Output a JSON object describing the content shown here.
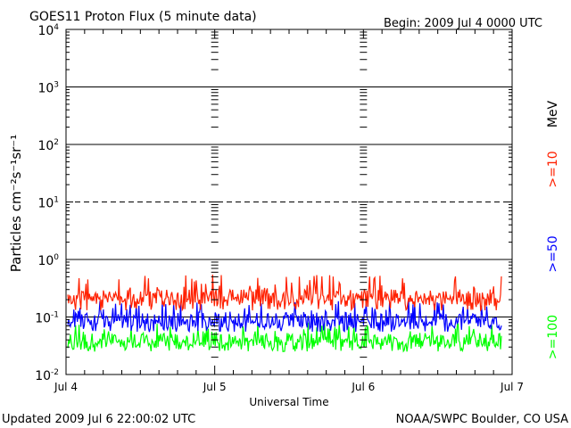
{
  "chart_data": {
    "type": "line",
    "title": "GOES11 Proton Flux (5 minute data)",
    "begin_label": "Begin: 2009 Jul 4 0000 UTC",
    "ylabel": "Particles cm⁻²s⁻¹sr⁻¹",
    "xlabel": "Universal Time",
    "y_scale": "log",
    "ylim": [
      0.01,
      10000
    ],
    "y_ticks": [
      {
        "base": "10",
        "exp": "4"
      },
      {
        "base": "10",
        "exp": "3"
      },
      {
        "base": "10",
        "exp": "2"
      },
      {
        "base": "10",
        "exp": "1"
      },
      {
        "base": "10",
        "exp": "0"
      },
      {
        "base": "10",
        "exp": "-1"
      },
      {
        "base": "10",
        "exp": "-2"
      }
    ],
    "x_range": [
      "2009-07-04T00:00Z",
      "2009-07-07T00:00Z"
    ],
    "x_ticks": [
      "Jul 4",
      "Jul 5",
      "Jul 6",
      "Jul 7"
    ],
    "threshold_lines": [
      {
        "value": 1000,
        "style": "solid"
      },
      {
        "value": 100,
        "style": "solid"
      },
      {
        "value": 10,
        "style": "dashed"
      },
      {
        "value": 1,
        "style": "solid"
      },
      {
        "value": 0.1,
        "style": "solid"
      }
    ],
    "series": [
      {
        "name": ">=10",
        "color": "#ff2000",
        "typical_value": 0.22,
        "range": [
          0.13,
          0.55
        ]
      },
      {
        "name": ">=50",
        "color": "#0000ff",
        "typical_value": 0.09,
        "range": [
          0.055,
          0.2
        ]
      },
      {
        "name": ">=100",
        "color": "#00ff00",
        "typical_value": 0.04,
        "range": [
          0.025,
          0.08
        ]
      }
    ],
    "energy_unit": "MeV"
  },
  "footer": {
    "updated": "Updated 2009 Jul  6 22:00:02 UTC",
    "source": "NOAA/SWPC Boulder, CO USA"
  }
}
